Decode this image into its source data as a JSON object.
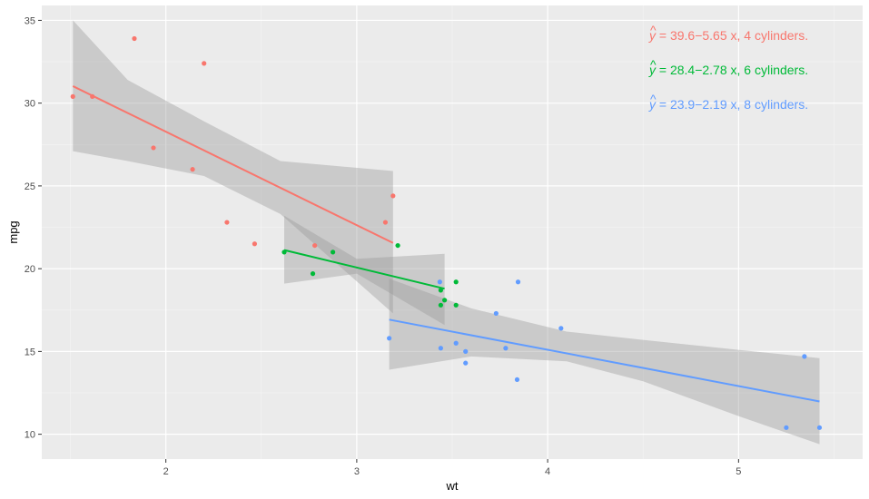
{
  "chart_data": {
    "type": "scatter",
    "title": "",
    "xlabel": "wt",
    "ylabel": "mpg",
    "xlim": [
      1.35,
      5.65
    ],
    "ylim": [
      8.5,
      35.9
    ],
    "x_ticks": [
      2,
      3,
      4,
      5
    ],
    "x_tick_labels": [
      "2",
      "3",
      "4",
      "5"
    ],
    "y_ticks": [
      10,
      15,
      20,
      25,
      30,
      35
    ],
    "y_tick_labels": [
      "10",
      "15",
      "20",
      "25",
      "30",
      "35"
    ],
    "grid": true,
    "legend": "none",
    "series": [
      {
        "name": "4 cylinders",
        "color": "#F8766D",
        "points": [
          [
            1.513,
            30.4
          ],
          [
            1.615,
            30.4
          ],
          [
            1.835,
            33.9
          ],
          [
            1.935,
            27.3
          ],
          [
            2.14,
            26.0
          ],
          [
            2.2,
            32.4
          ],
          [
            2.32,
            22.8
          ],
          [
            2.465,
            21.5
          ],
          [
            2.78,
            21.4
          ],
          [
            3.15,
            22.8
          ],
          [
            3.19,
            24.4
          ]
        ],
        "fit": {
          "intercept": 39.57,
          "slope": -5.647,
          "x_range": [
            1.513,
            3.19
          ]
        },
        "ribbon": [
          [
            1.513,
            27.1,
            35.0
          ],
          [
            1.8,
            26.5,
            31.4
          ],
          [
            2.2,
            25.6,
            28.9
          ],
          [
            2.6,
            23.3,
            26.5
          ],
          [
            3.19,
            17.3,
            25.9
          ]
        ],
        "equation": "= 39.6−5.65 x, 4 cylinders."
      },
      {
        "name": "6 cylinders",
        "color": "#00BA38",
        "points": [
          [
            2.62,
            21.0
          ],
          [
            2.77,
            19.7
          ],
          [
            2.875,
            21.0
          ],
          [
            3.215,
            21.4
          ],
          [
            3.44,
            18.7
          ],
          [
            3.44,
            17.8
          ],
          [
            3.46,
            18.1
          ],
          [
            3.52,
            19.2
          ],
          [
            3.52,
            17.8
          ]
        ],
        "fit": {
          "intercept": 28.41,
          "slope": -2.78,
          "x_range": [
            2.62,
            3.46
          ]
        },
        "ribbon": [
          [
            2.62,
            19.1,
            23.2
          ],
          [
            3.0,
            19.7,
            20.6
          ],
          [
            3.46,
            16.6,
            20.9
          ]
        ],
        "equation": "= 28.4−2.78 x, 6 cylinders."
      },
      {
        "name": "8 cylinders",
        "color": "#619CFF",
        "points": [
          [
            3.17,
            15.8
          ],
          [
            3.435,
            19.2
          ],
          [
            3.44,
            15.2
          ],
          [
            3.52,
            15.5
          ],
          [
            3.57,
            15.0
          ],
          [
            3.57,
            14.3
          ],
          [
            3.73,
            17.3
          ],
          [
            3.78,
            15.2
          ],
          [
            3.84,
            13.3
          ],
          [
            3.845,
            19.2
          ],
          [
            4.07,
            16.4
          ],
          [
            5.25,
            10.4
          ],
          [
            5.345,
            14.7
          ],
          [
            5.424,
            10.4
          ]
        ],
        "fit": {
          "intercept": 23.87,
          "slope": -2.192,
          "x_range": [
            3.17,
            5.424
          ]
        },
        "ribbon": [
          [
            3.17,
            13.9,
            19.4
          ],
          [
            3.6,
            14.7,
            17.6
          ],
          [
            4.1,
            14.4,
            16.2
          ],
          [
            4.5,
            13.2,
            15.7
          ],
          [
            5.0,
            11.1,
            15.1
          ],
          [
            5.424,
            9.4,
            14.6
          ]
        ],
        "equation": "= 23.9−2.19 x, 8 cylinders."
      }
    ],
    "equation_symbol": "y",
    "equation_hat": "^"
  }
}
